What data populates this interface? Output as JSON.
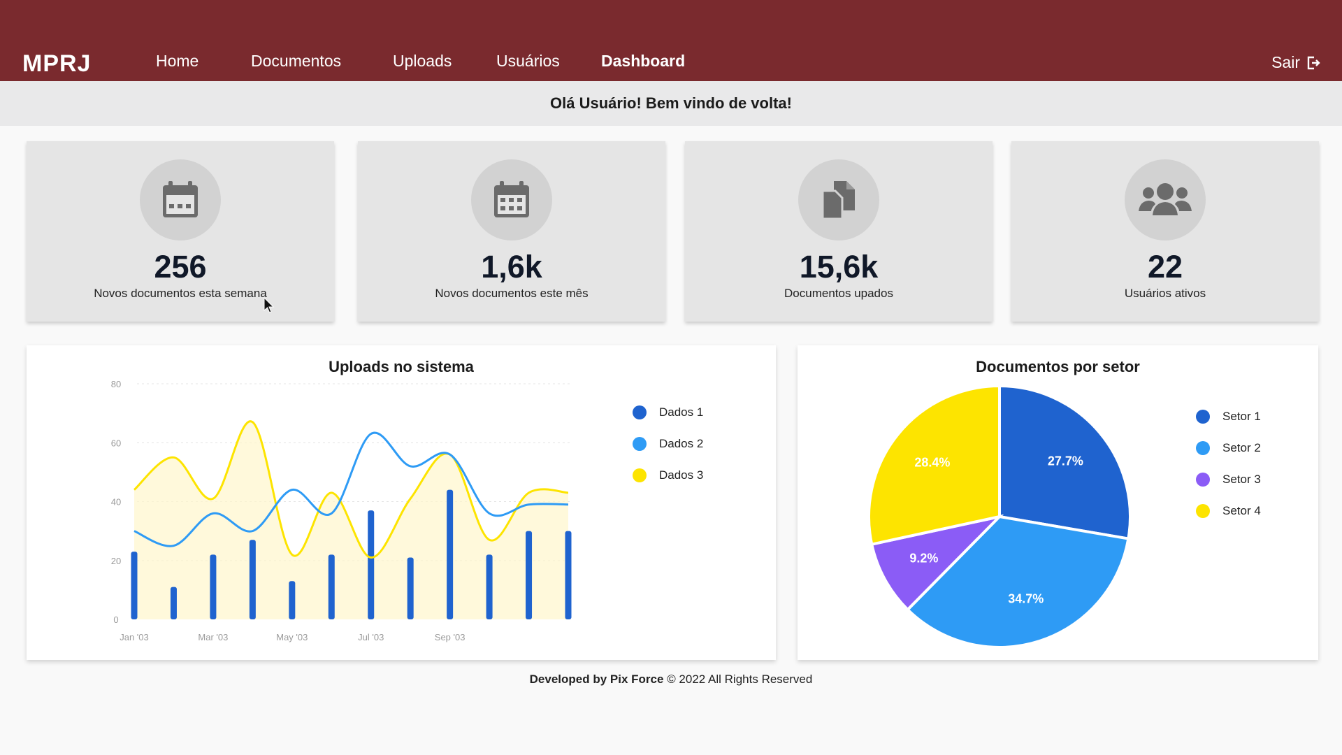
{
  "header": {
    "logo_text": "MPRJ",
    "nav": [
      {
        "label": "Home",
        "active": false
      },
      {
        "label": "Documentos",
        "active": false
      },
      {
        "label": "Uploads",
        "active": false
      },
      {
        "label": "Usuários",
        "active": false
      },
      {
        "label": "Dashboard",
        "active": true
      }
    ],
    "logout_label": "Sair",
    "logout_icon": "logout-icon",
    "bg_color": "#7a2a2e"
  },
  "welcome": "Olá Usuário! Bem vindo de volta!",
  "stats": [
    {
      "icon": "calendar-icon",
      "value": "256",
      "label": "Novos documentos esta semana"
    },
    {
      "icon": "calendar-grid-icon",
      "value": "1,6k",
      "label": "Novos documentos este mês"
    },
    {
      "icon": "documents-icon",
      "value": "15,6k",
      "label": "Documentos upados"
    },
    {
      "icon": "users-icon",
      "value": "22",
      "label": "Usuários ativos"
    }
  ],
  "uploads_panel": {
    "title": "Uploads no sistema"
  },
  "sector_panel": {
    "title": "Documentos por setor"
  },
  "chart_data": [
    {
      "type": "line",
      "title": "Uploads no sistema",
      "x_tick_labels": [
        "Jan '03",
        "Mar '03",
        "May '03",
        "Jul '03",
        "Sep '03"
      ],
      "y_ticks": [
        0,
        20,
        40,
        60,
        80
      ],
      "ylim": [
        0,
        80
      ],
      "grid": true,
      "legend_position": "right",
      "x": [
        1,
        2,
        3,
        4,
        5,
        6,
        7,
        8,
        9,
        10,
        11,
        12
      ],
      "series": [
        {
          "name": "Dados 1",
          "kind": "bar",
          "color": "#1f63cf",
          "values": [
            23,
            11,
            22,
            27,
            13,
            22,
            37,
            21,
            44,
            22,
            30,
            30
          ]
        },
        {
          "name": "Dados 2",
          "kind": "line",
          "color": "#2e9bf5",
          "values": [
            30,
            25,
            36,
            30,
            44,
            36,
            63,
            52,
            56,
            36,
            39,
            39
          ]
        },
        {
          "name": "Dados 3",
          "kind": "area",
          "color": "#fde400",
          "values": [
            44,
            55,
            41,
            67,
            22,
            43,
            21,
            41,
            56,
            27,
            43,
            43
          ]
        }
      ]
    },
    {
      "type": "pie",
      "title": "Documentos por setor",
      "legend_position": "right",
      "slices": [
        {
          "name": "Setor 1",
          "value": 27.7,
          "label": "27.7%",
          "color": "#1f63cf"
        },
        {
          "name": "Setor 2",
          "value": 34.7,
          "label": "34.7%",
          "color": "#2e9bf5"
        },
        {
          "name": "Setor 3",
          "value": 9.2,
          "label": "9.2%",
          "color": "#8b5cf6"
        },
        {
          "name": "Setor 4",
          "value": 28.4,
          "label": "28.4%",
          "color": "#fde400"
        }
      ]
    }
  ],
  "footer": {
    "developer": "Developed by Pix Force",
    "rights": "© 2022 All Rights Reserved"
  }
}
